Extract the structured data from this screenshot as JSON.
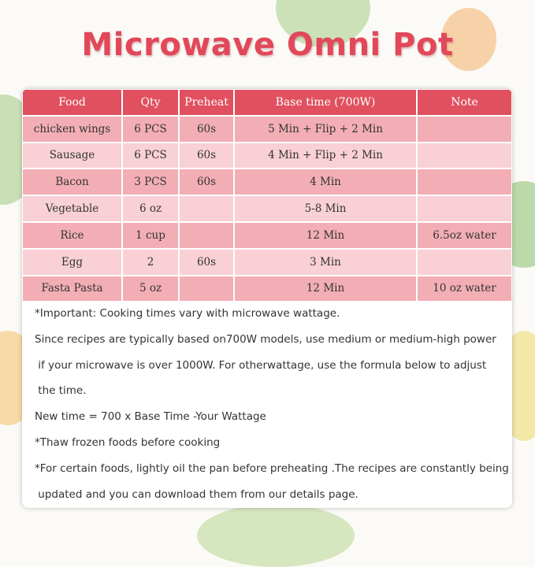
{
  "title": "Microwave Omni Pot",
  "table": {
    "headers": [
      "Food",
      "Qty",
      "Preheat",
      "Base time (700W)",
      "Note"
    ],
    "rows": [
      [
        "chicken wings",
        "6 PCS",
        "60s",
        "5 Min + Flip + 2 Min",
        null
      ],
      [
        "Sausage",
        "6 PCS",
        "60s",
        "4 Min + Flip + 2 Min",
        null
      ],
      [
        "Bacon",
        "3 PCS",
        "60s",
        "4 Min",
        null
      ],
      [
        "Vegetable",
        "6 oz",
        null,
        "5-8 Min",
        null
      ],
      [
        "Rice",
        "1 cup",
        null,
        "12 Min",
        "6.5oz water"
      ],
      [
        "Egg",
        "2",
        "60s",
        "3 Min",
        null
      ],
      [
        "Fasta Pasta",
        "5 oz",
        null,
        "12 Min",
        "10 oz water"
      ]
    ]
  },
  "notes": [
    "*Important: Cooking times vary with microwave wattage.",
    "Since recipes are typically based on700W models, use medium or medium-high power",
    " if your microwave is over 1000W. For otherwattage, use the formula below to adjust",
    " the time.",
    "New time = 700 x Base Time -Your Wattage",
    "*Thaw frozen foods before cooking",
    "*For certain foods, lightly oil the pan before preheating .The recipes are constantly being",
    " updated and you can download them from our details page."
  ]
}
